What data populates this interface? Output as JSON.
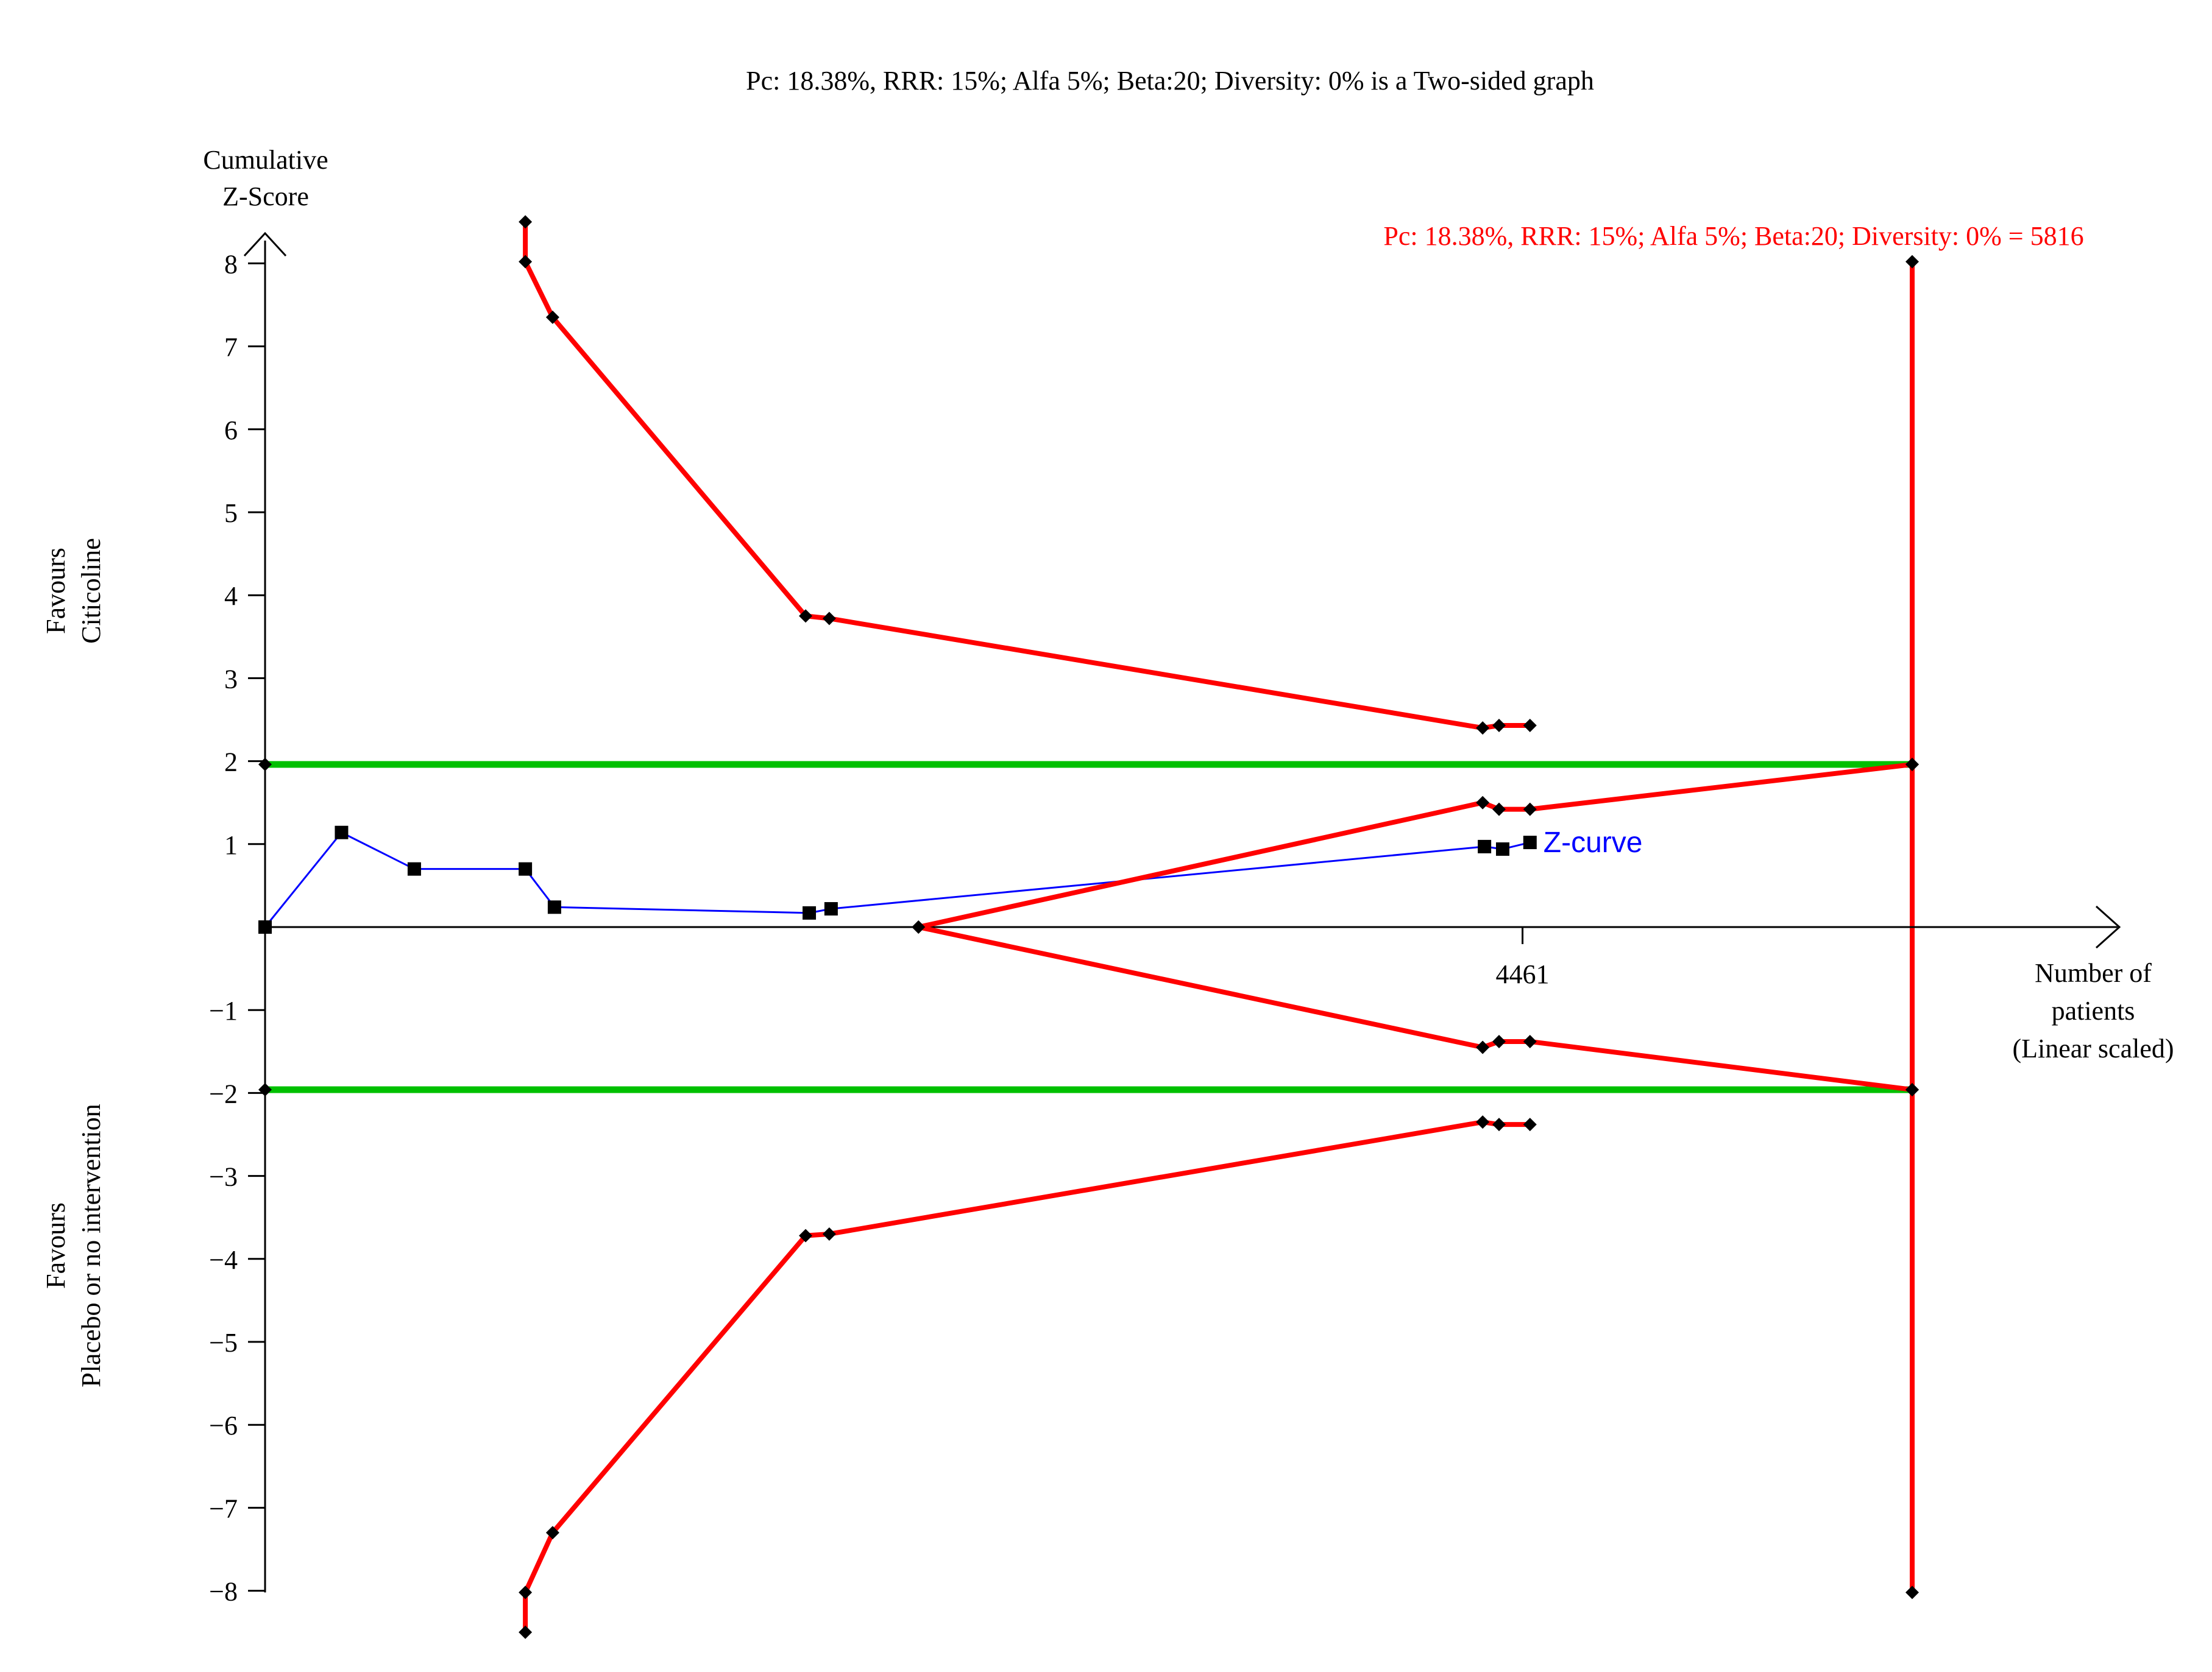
{
  "chart_data": {
    "type": "line",
    "title": "Pc: 18.38%, RRR: 15%; Alfa 5%; Beta:20; Diversity: 0% is a Two-sided graph",
    "ylabel_lines": [
      "Cumulative",
      "Z-Score"
    ],
    "xlabel_lines": [
      "Number of",
      "patients",
      "(Linear scaled)"
    ],
    "favour_top_lines": [
      "Favours",
      "Citicoline"
    ],
    "favour_bottom_lines": [
      "Favours",
      "Placebo or no intervention"
    ],
    "information_size_label": "Pc: 18.38%, RRR: 15%; Alfa 5%; Beta:20; Diversity: 0% = 5816",
    "xlim": [
      0,
      9050
    ],
    "ylim": [
      -8.5,
      8.5
    ],
    "y_ticks": [
      8,
      7,
      6,
      5,
      4,
      3,
      2,
      1,
      -1,
      -2,
      -3,
      -4,
      -5,
      -6,
      -7,
      -8
    ],
    "y_tick_labels": [
      "8",
      "7",
      "6",
      "5",
      "4",
      "3",
      "2",
      "1",
      "−1",
      "−2",
      "−3",
      "−4",
      "−5",
      "−6",
      "−7",
      "−8"
    ],
    "x_ticks": [
      {
        "value": 6909,
        "label": "4461"
      }
    ],
    "conventional_boundary": 1.96,
    "required_information_size": 9050,
    "series": [
      {
        "name": "Z-curve",
        "color": "#0000ff",
        "marker": "square",
        "points": [
          [
            0,
            0
          ],
          [
            420,
            1.14
          ],
          [
            820,
            0.7
          ],
          [
            1430,
            0.7
          ],
          [
            1590,
            0.24
          ],
          [
            2990,
            0.17
          ],
          [
            3110,
            0.22
          ],
          [
            6700,
            0.97
          ],
          [
            6800,
            0.94
          ],
          [
            6950,
            1.02
          ]
        ]
      },
      {
        "color": "#ff0000",
        "marker": "diamond",
        "points": [
          [
            1430,
            8.5
          ],
          [
            1430,
            8.02
          ],
          [
            1580,
            7.35
          ],
          [
            2970,
            3.75
          ],
          [
            3100,
            3.72
          ],
          [
            6690,
            2.4
          ],
          [
            6780,
            2.43
          ],
          [
            6950,
            2.43
          ]
        ]
      },
      {
        "color": "#ff0000",
        "marker": "diamond",
        "points": [
          [
            1430,
            -8.5
          ],
          [
            1430,
            -8.02
          ],
          [
            1580,
            -7.3
          ],
          [
            2970,
            -3.72
          ],
          [
            3100,
            -3.7
          ],
          [
            6690,
            -2.35
          ],
          [
            6780,
            -2.38
          ],
          [
            6950,
            -2.38
          ]
        ]
      },
      {
        "color": "#ff0000",
        "marker": "diamond",
        "points": [
          [
            3590,
            0
          ],
          [
            6690,
            1.5
          ],
          [
            6780,
            1.42
          ],
          [
            6950,
            1.42
          ],
          [
            9050,
            1.96
          ]
        ]
      },
      {
        "color": "#ff0000",
        "marker": "diamond",
        "points": [
          [
            3590,
            0
          ],
          [
            6690,
            -1.45
          ],
          [
            6780,
            -1.38
          ],
          [
            6950,
            -1.38
          ],
          [
            9050,
            -1.96
          ]
        ]
      }
    ]
  },
  "colors": {
    "axis": "#000000",
    "conventional_boundary": "#00c000",
    "monitoring_boundary": "#ff0000",
    "z_curve": "#0000ff",
    "background": "#ffffff"
  }
}
